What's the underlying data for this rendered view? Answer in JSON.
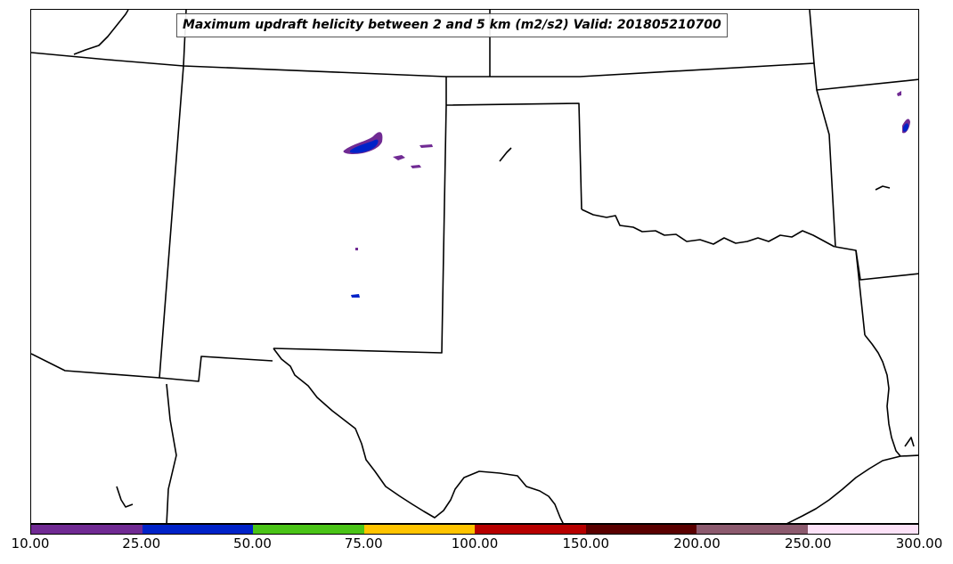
{
  "map": {
    "title": "Maximum updraft helicity between 2 and 5 km (m2/s2) Valid: 201805210700"
  },
  "colorbar": {
    "colors": [
      "#702a93",
      "#0022c8",
      "#4ac417",
      "#ffc400",
      "#b70000",
      "#5a0000",
      "#8c5a6e",
      "#fde2f8"
    ],
    "tick_labels": [
      "10.00",
      "25.00",
      "50.00",
      "75.00",
      "100.00",
      "150.00",
      "200.00",
      "250.00",
      "300.00"
    ]
  },
  "colors": {
    "purple": "#702a93",
    "blue": "#0022c8"
  }
}
